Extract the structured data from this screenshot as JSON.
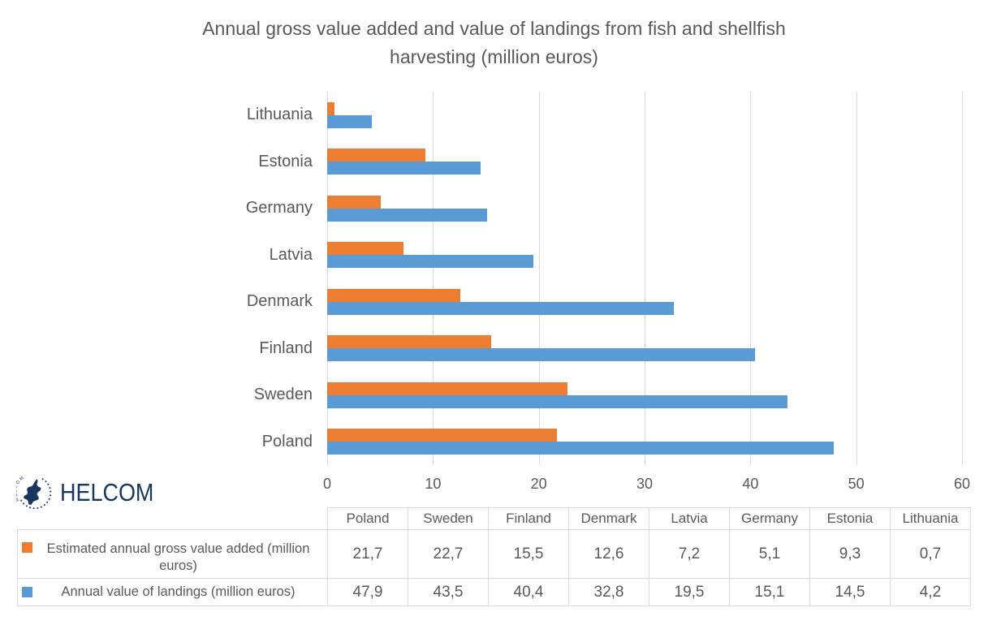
{
  "logo": {
    "text": "HELCOM",
    "emblem": "baltic-sea-emblem",
    "color": "#17375E"
  },
  "chart_data": {
    "type": "bar",
    "orientation": "horizontal",
    "title": "Annual gross value added and value of landings from fish and shellfish harvesting (million euros)",
    "categories": [
      "Lithuania",
      "Estonia",
      "Germany",
      "Latvia",
      "Denmark",
      "Finland",
      "Sweden",
      "Poland"
    ],
    "series": [
      {
        "name": "Estimated annual gross value added (million euros)",
        "color": "#ED7D31",
        "slug": "gross-value-added",
        "values": [
          0.7,
          9.3,
          5.1,
          7.2,
          12.6,
          15.5,
          22.7,
          21.7
        ]
      },
      {
        "name": "Annual value of landings (million euros)",
        "color": "#5B9BD5",
        "slug": "value-of-landings",
        "values": [
          4.2,
          14.5,
          15.1,
          19.5,
          32.8,
          40.4,
          43.5,
          47.9
        ]
      }
    ],
    "xlim": [
      0,
      60
    ],
    "x_ticks": [
      0,
      10,
      20,
      30,
      40,
      50,
      60
    ],
    "grid": "vertical-gridlines",
    "legend_position": "table-left-column",
    "gridline_color": "#D9D9D9",
    "text_color": "#595959"
  },
  "table": {
    "columns": [
      "Poland",
      "Sweden",
      "Finland",
      "Denmark",
      "Latvia",
      "Germany",
      "Estonia",
      "Lithuania"
    ],
    "rows": [
      {
        "label": "Estimated annual gross value added (million euros)",
        "swatch_color": "#ED7D31",
        "swatch_slug": "gross-value-added",
        "values": [
          "21,7",
          "22,7",
          "15,5",
          "12,6",
          "7,2",
          "5,1",
          "9,3",
          "0,7"
        ]
      },
      {
        "label": "Annual value of landings (million euros)",
        "swatch_color": "#5B9BD5",
        "swatch_slug": "value-of-landings",
        "values": [
          "47,9",
          "43,5",
          "40,4",
          "32,8",
          "19,5",
          "15,1",
          "14,5",
          "4,2"
        ]
      }
    ]
  }
}
